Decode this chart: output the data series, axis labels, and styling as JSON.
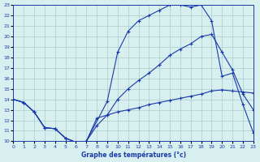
{
  "title": "Graphe des températures (°c)",
  "bg_color": "#d8eff0",
  "grid_color": "#aacccc",
  "line_color": "#1a3aaa",
  "xlim": [
    0,
    23
  ],
  "ylim": [
    10,
    23
  ],
  "xticks": [
    0,
    1,
    2,
    3,
    4,
    5,
    6,
    7,
    8,
    9,
    10,
    11,
    12,
    13,
    14,
    15,
    16,
    17,
    18,
    19,
    20,
    21,
    22,
    23
  ],
  "yticks": [
    10,
    11,
    12,
    13,
    14,
    15,
    16,
    17,
    18,
    19,
    20,
    21,
    22,
    23
  ],
  "top_x": [
    0,
    1,
    2,
    3,
    4,
    5,
    6,
    7,
    9,
    10,
    11,
    12,
    13,
    14,
    15,
    16,
    17,
    18,
    19,
    20,
    21,
    22,
    23
  ],
  "top_y": [
    14.0,
    13.7,
    12.8,
    11.3,
    11.2,
    10.3,
    9.9,
    10.0,
    13.8,
    18.5,
    20.5,
    21.5,
    22.0,
    22.5,
    23.0,
    23.0,
    22.8,
    23.0,
    21.5,
    16.2,
    16.5,
    13.5,
    10.8
  ],
  "mid_x": [
    0,
    1,
    2,
    3,
    4,
    5,
    6,
    7,
    8,
    9,
    10,
    11,
    12,
    13,
    14,
    15,
    16,
    17,
    18,
    19,
    20,
    21,
    22,
    23
  ],
  "mid_y": [
    14.0,
    13.7,
    12.8,
    11.3,
    11.2,
    10.3,
    9.9,
    10.0,
    11.5,
    12.5,
    14.0,
    15.0,
    15.8,
    16.5,
    17.3,
    18.2,
    18.8,
    19.3,
    20.0,
    20.2,
    18.5,
    16.8,
    14.5,
    13.0
  ],
  "bot_x": [
    0,
    1,
    2,
    3,
    4,
    5,
    6,
    7,
    8,
    9,
    10,
    11,
    12,
    13,
    14,
    15,
    16,
    17,
    18,
    19,
    20,
    21,
    22,
    23
  ],
  "bot_y": [
    14.0,
    13.7,
    12.8,
    11.3,
    11.2,
    10.3,
    9.9,
    10.0,
    12.2,
    12.5,
    12.8,
    13.0,
    13.2,
    13.5,
    13.7,
    13.9,
    14.1,
    14.3,
    14.5,
    14.8,
    14.9,
    14.8,
    14.7,
    14.6
  ]
}
